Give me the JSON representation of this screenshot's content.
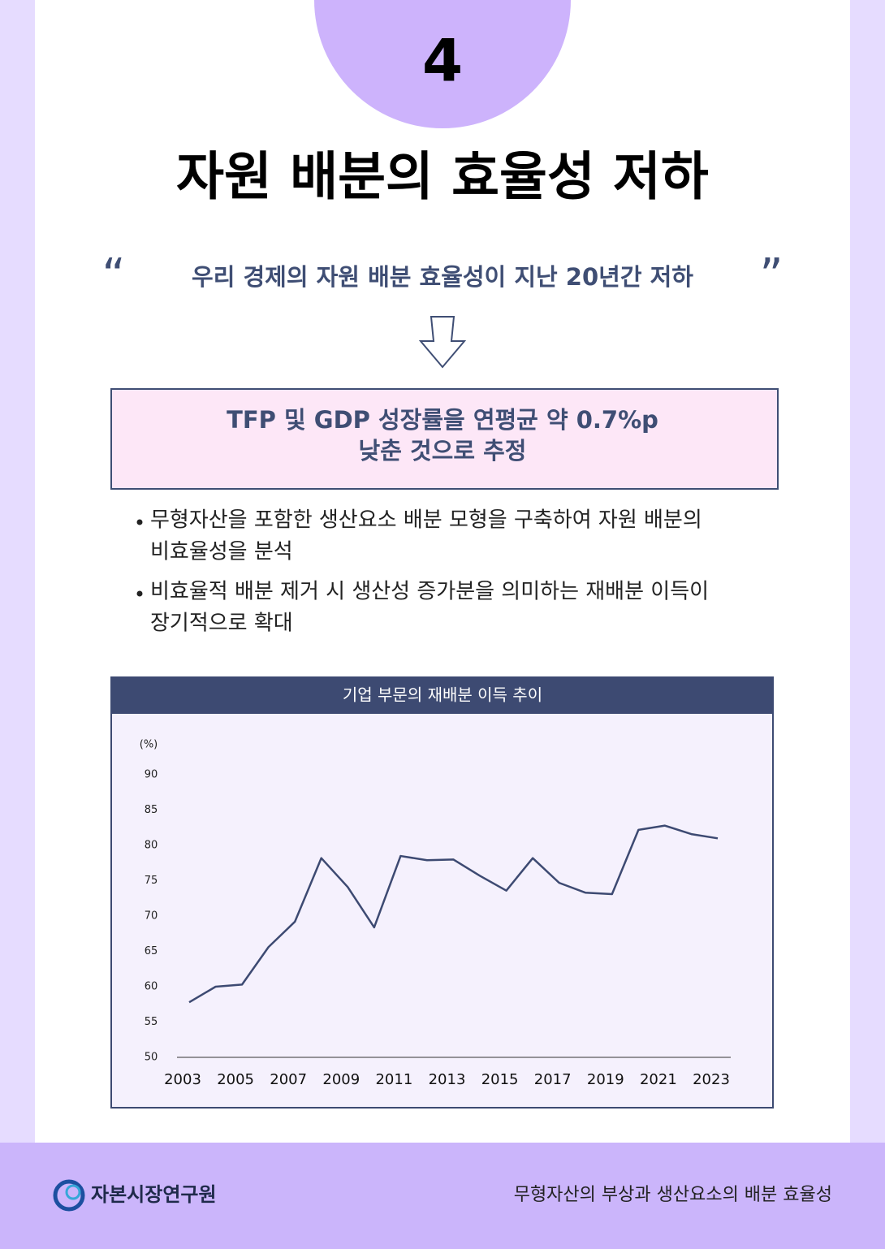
{
  "badge": "4",
  "title": "자원 배분의 효율성 저하",
  "quote": {
    "open": "“",
    "text": "우리 경제의 자원 배분 효율성이 지난 20년간 저하",
    "close": "”"
  },
  "highlight": [
    "TFP 및 GDP 성장률을 연평균 약 0.7%p",
    "낮춘 것으로 추정"
  ],
  "bullets": [
    [
      "무형자산을 포함한 생산요소 배분 모형을 구축하여 자원 배분의",
      "비효율성을 분석"
    ],
    [
      "비효율적 배분 제거 시 생산성 증가분을 의미하는 재배분 이득이",
      "장기적으로 확대"
    ]
  ],
  "chart_data": {
    "type": "line",
    "title": "기업 부문의 재배분 이득 추이",
    "y_label": "(%)",
    "x": [
      2003,
      2004,
      2005,
      2006,
      2007,
      2008,
      2009,
      2010,
      2011,
      2012,
      2013,
      2014,
      2015,
      2016,
      2017,
      2018,
      2019,
      2020,
      2021,
      2022,
      2023
    ],
    "values": [
      57.8,
      60.0,
      60.3,
      65.6,
      69.2,
      78.2,
      74.1,
      68.4,
      78.5,
      77.9,
      78.0,
      75.7,
      73.6,
      78.2,
      74.7,
      73.3,
      73.1,
      82.2,
      82.8,
      81.6,
      81.0
    ],
    "color": "#3d4a72",
    "xlim": [
      2003,
      2023
    ],
    "xticks": [
      2003,
      2005,
      2007,
      2009,
      2011,
      2013,
      2015,
      2017,
      2019,
      2021,
      2023
    ],
    "ylim": [
      50,
      90
    ],
    "yticks": [
      50,
      55,
      60,
      65,
      70,
      75,
      80,
      85,
      90
    ],
    "grid": false
  },
  "footer": {
    "org": "자본시장연구원",
    "doc": "무형자산의 부상과 생산요소의 배분 효율성"
  }
}
